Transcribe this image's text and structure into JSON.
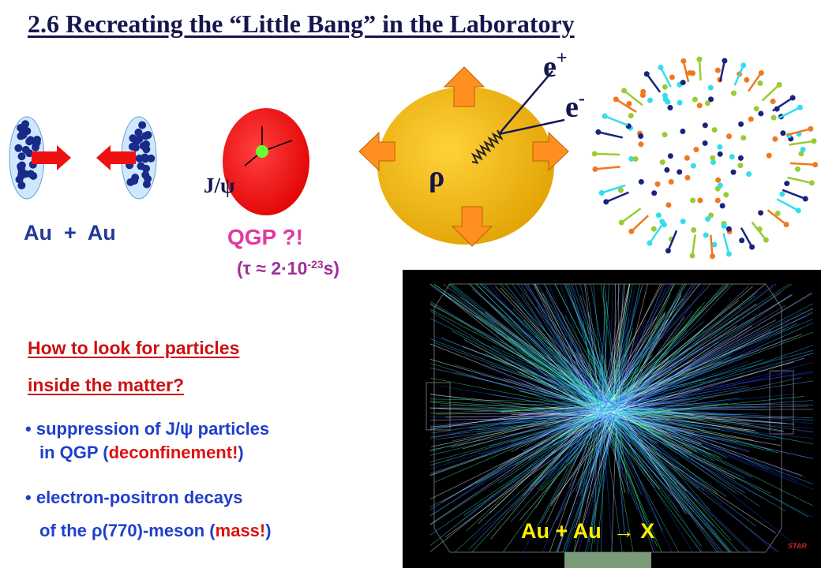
{
  "title": "2.6 Recreating the “Little Bang” in the Laboratory",
  "collision": {
    "label": "Au  +  Au"
  },
  "qgp": {
    "probe": "J/ψ",
    "label": "QGP ?!",
    "lifetime": [
      "(τ ≈ 2·10",
      "-23",
      "s)"
    ]
  },
  "expansion": {
    "positron": [
      "e",
      "+"
    ],
    "electron": [
      "e",
      "-"
    ],
    "meson": "ρ"
  },
  "question": [
    "How to look for particles",
    "inside the matter?"
  ],
  "bullets": [
    {
      "lines": [
        [
          "suppression of J/ψ particles"
        ],
        [
          "in QGP (",
          "deconfinement!",
          ")"
        ]
      ]
    },
    {
      "lines": [
        [
          "electron-positron decays"
        ],
        [
          "of the ρ(770)-meson (",
          "mass!",
          ")"
        ]
      ]
    }
  ],
  "detector": {
    "caption": "Au + Au  → X",
    "logo": "STAR"
  }
}
